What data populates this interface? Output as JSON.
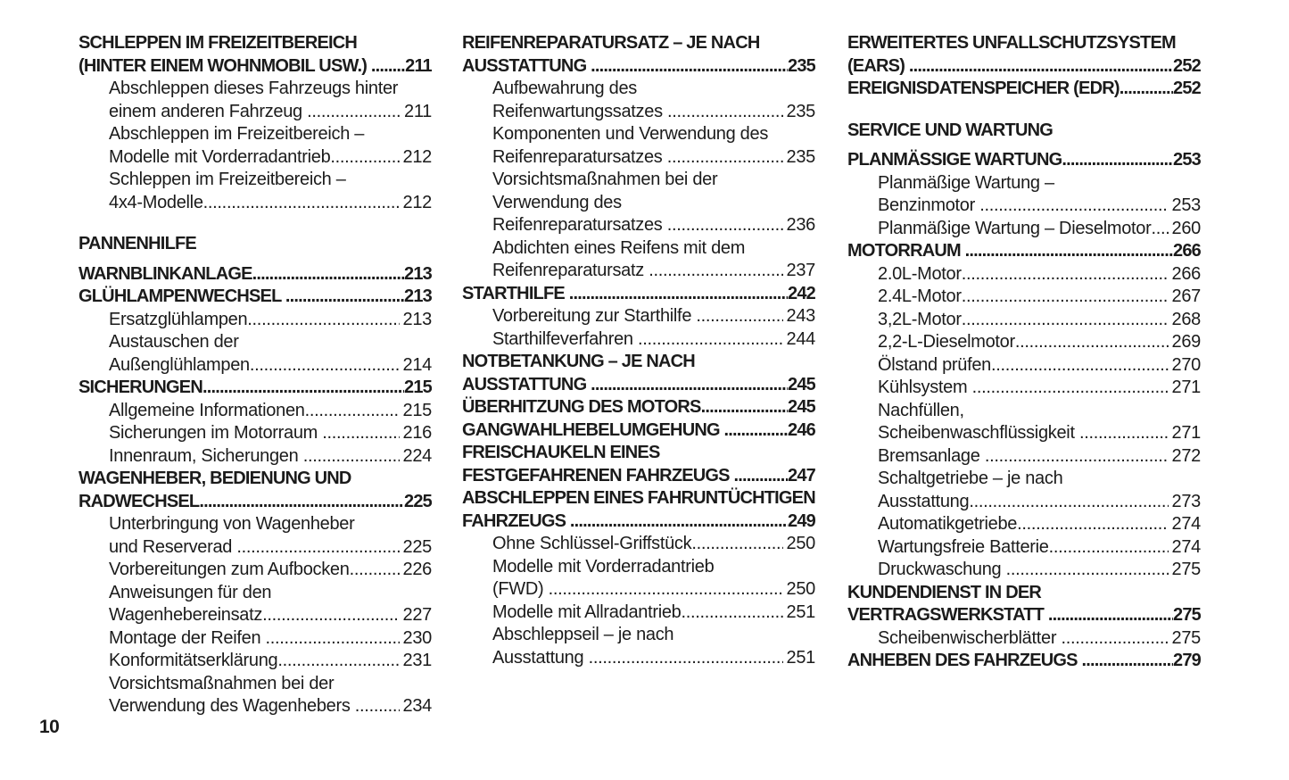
{
  "page": {
    "number": "10"
  },
  "colors": {
    "text": "#1b1b1b",
    "background": "#ffffff"
  },
  "columns": [
    {
      "blocks": [
        {
          "type": "entry",
          "weight": "bold",
          "indent": 0,
          "lines": [
            {
              "text": "SCHLEPPEN IM FREIZEITBEREICH"
            },
            {
              "text": "(HINTER EINEM WOHNMOBIL USW.) ",
              "page": "211"
            }
          ]
        },
        {
          "type": "entry",
          "weight": "regular",
          "indent": 1,
          "lines": [
            {
              "text": "Abschleppen dieses Fahrzeugs hinter"
            },
            {
              "text": "einem anderen Fahrzeug ",
              "page": "211"
            }
          ]
        },
        {
          "type": "entry",
          "weight": "regular",
          "indent": 1,
          "lines": [
            {
              "text": "Abschleppen im Freizeitbereich –"
            },
            {
              "text": "Modelle mit Vorderradantrieb",
              "page": "212"
            }
          ]
        },
        {
          "type": "entry",
          "weight": "regular",
          "indent": 1,
          "lines": [
            {
              "text": "Schleppen im Freizeitbereich –"
            },
            {
              "text": "4x4-Modelle",
              "page": "212"
            }
          ]
        },
        {
          "type": "header",
          "text": "PANNENHILFE"
        },
        {
          "type": "entry",
          "weight": "bold",
          "indent": 0,
          "lines": [
            {
              "text": "WARNBLINKANLAGE",
              "page": "213"
            }
          ]
        },
        {
          "type": "entry",
          "weight": "bold",
          "indent": 0,
          "lines": [
            {
              "text": "GLÜHLAMPENWECHSEL ",
              "page": "213"
            }
          ]
        },
        {
          "type": "entry",
          "weight": "regular",
          "indent": 1,
          "lines": [
            {
              "text": "Ersatzglühlampen",
              "page": "213"
            }
          ]
        },
        {
          "type": "entry",
          "weight": "regular",
          "indent": 1,
          "lines": [
            {
              "text": "Austauschen der"
            },
            {
              "text": "Außenglühlampen",
              "page": "214"
            }
          ]
        },
        {
          "type": "entry",
          "weight": "bold",
          "indent": 0,
          "lines": [
            {
              "text": "SICHERUNGEN",
              "page": "215"
            }
          ]
        },
        {
          "type": "entry",
          "weight": "regular",
          "indent": 1,
          "lines": [
            {
              "text": "Allgemeine Informationen",
              "page": "215"
            }
          ]
        },
        {
          "type": "entry",
          "weight": "regular",
          "indent": 1,
          "lines": [
            {
              "text": "Sicherungen im Motorraum ",
              "page": "216"
            }
          ]
        },
        {
          "type": "entry",
          "weight": "regular",
          "indent": 1,
          "lines": [
            {
              "text": "Innenraum, Sicherungen ",
              "page": "224"
            }
          ]
        },
        {
          "type": "entry",
          "weight": "bold",
          "indent": 0,
          "lines": [
            {
              "text": "WAGENHEBER, BEDIENUNG UND"
            },
            {
              "text": "RADWECHSEL",
              "page": "225"
            }
          ]
        },
        {
          "type": "entry",
          "weight": "regular",
          "indent": 1,
          "lines": [
            {
              "text": "Unterbringung von Wagenheber"
            },
            {
              "text": "und Reserverad ",
              "page": "225"
            }
          ]
        },
        {
          "type": "entry",
          "weight": "regular",
          "indent": 1,
          "lines": [
            {
              "text": "Vorbereitungen zum Aufbocken",
              "page": "226"
            }
          ]
        },
        {
          "type": "entry",
          "weight": "regular",
          "indent": 1,
          "lines": [
            {
              "text": "Anweisungen für den"
            },
            {
              "text": "Wagenhebereinsatz",
              "page": "227"
            }
          ]
        },
        {
          "type": "entry",
          "weight": "regular",
          "indent": 1,
          "lines": [
            {
              "text": "Montage der Reifen ",
              "page": "230"
            }
          ]
        },
        {
          "type": "entry",
          "weight": "regular",
          "indent": 1,
          "lines": [
            {
              "text": "Konformitätserklärung",
              "page": "231"
            }
          ]
        },
        {
          "type": "entry",
          "weight": "regular",
          "indent": 1,
          "lines": [
            {
              "text": "Vorsichtsmaßnahmen bei der"
            },
            {
              "text": "Verwendung des Wagenhebers ",
              "page": "234"
            }
          ]
        }
      ]
    },
    {
      "blocks": [
        {
          "type": "entry",
          "weight": "bold",
          "indent": 0,
          "lines": [
            {
              "text": "REIFENREPARATURSATZ – JE NACH"
            },
            {
              "text": "AUSSTATTUNG ",
              "page": "235"
            }
          ]
        },
        {
          "type": "entry",
          "weight": "regular",
          "indent": 1,
          "lines": [
            {
              "text": "Aufbewahrung des"
            },
            {
              "text": "Reifenwartungssatzes ",
              "page": "235"
            }
          ]
        },
        {
          "type": "entry",
          "weight": "regular",
          "indent": 1,
          "lines": [
            {
              "text": "Komponenten und Verwendung des"
            },
            {
              "text": "Reifenreparatursatzes ",
              "page": "235"
            }
          ]
        },
        {
          "type": "entry",
          "weight": "regular",
          "indent": 1,
          "lines": [
            {
              "text": "Vorsichtsmaßnahmen bei der"
            },
            {
              "text": "Verwendung des"
            },
            {
              "text": "Reifenreparatursatzes ",
              "page": "236"
            }
          ]
        },
        {
          "type": "entry",
          "weight": "regular",
          "indent": 1,
          "lines": [
            {
              "text": "Abdichten eines Reifens mit dem"
            },
            {
              "text": "Reifenreparatursatz ",
              "page": "237"
            }
          ]
        },
        {
          "type": "entry",
          "weight": "bold",
          "indent": 0,
          "lines": [
            {
              "text": "STARTHILFE ",
              "page": "242"
            }
          ]
        },
        {
          "type": "entry",
          "weight": "regular",
          "indent": 1,
          "lines": [
            {
              "text": "Vorbereitung zur Starthilfe ",
              "page": "243"
            }
          ]
        },
        {
          "type": "entry",
          "weight": "regular",
          "indent": 1,
          "lines": [
            {
              "text": "Starthilfeverfahren ",
              "page": "244"
            }
          ]
        },
        {
          "type": "entry",
          "weight": "bold",
          "indent": 0,
          "lines": [
            {
              "text": "NOTBETANKUNG – JE NACH"
            },
            {
              "text": "AUSSTATTUNG ",
              "page": "245"
            }
          ]
        },
        {
          "type": "entry",
          "weight": "bold",
          "indent": 0,
          "lines": [
            {
              "text": "ÜBERHITZUNG DES MOTORS",
              "page": "245"
            }
          ]
        },
        {
          "type": "entry",
          "weight": "bold",
          "indent": 0,
          "lines": [
            {
              "text": "GANGWAHLHEBELUMGEHUNG ",
              "page": "246"
            }
          ]
        },
        {
          "type": "entry",
          "weight": "bold",
          "indent": 0,
          "lines": [
            {
              "text": "FREISCHAUKELN EINES"
            },
            {
              "text": "FESTGEFAHRENEN FAHRZEUGS ",
              "page": "247"
            }
          ]
        },
        {
          "type": "entry",
          "weight": "bold",
          "indent": 0,
          "lines": [
            {
              "text": "ABSCHLEPPEN EINES FAHRUNTÜCHTIGEN"
            },
            {
              "text": "FAHRZEUGS ",
              "page": "249"
            }
          ]
        },
        {
          "type": "entry",
          "weight": "regular",
          "indent": 1,
          "lines": [
            {
              "text": "Ohne Schlüssel-Griffstück",
              "page": "250"
            }
          ]
        },
        {
          "type": "entry",
          "weight": "regular",
          "indent": 1,
          "lines": [
            {
              "text": "Modelle mit Vorderradantrieb"
            },
            {
              "text": "(FWD) ",
              "page": "250"
            }
          ]
        },
        {
          "type": "entry",
          "weight": "regular",
          "indent": 1,
          "lines": [
            {
              "text": "Modelle mit Allradantrieb",
              "page": "251"
            }
          ]
        },
        {
          "type": "entry",
          "weight": "regular",
          "indent": 1,
          "lines": [
            {
              "text": "Abschleppseil – je nach"
            },
            {
              "text": "Ausstattung ",
              "page": "251"
            }
          ]
        }
      ]
    },
    {
      "blocks": [
        {
          "type": "entry",
          "weight": "bold",
          "indent": 0,
          "lines": [
            {
              "text": "ERWEITERTES UNFALLSCHUTZSYSTEM"
            },
            {
              "text": "(EARS) ",
              "page": "252"
            }
          ]
        },
        {
          "type": "entry",
          "weight": "bold",
          "indent": 0,
          "lines": [
            {
              "text": "EREIGNISDATENSPEICHER (EDR)",
              "page": "252"
            }
          ]
        },
        {
          "type": "header",
          "text": "SERVICE UND WARTUNG"
        },
        {
          "type": "entry",
          "weight": "bold",
          "indent": 0,
          "lines": [
            {
              "text": "PLANMÄSSIGE WARTUNG",
              "page": "253"
            }
          ]
        },
        {
          "type": "entry",
          "weight": "regular",
          "indent": 1,
          "lines": [
            {
              "text": "Planmäßige Wartung –"
            },
            {
              "text": "Benzinmotor ",
              "page": "253"
            }
          ]
        },
        {
          "type": "entry",
          "weight": "regular",
          "indent": 1,
          "lines": [
            {
              "text": "Planmäßige Wartung – Dieselmotor",
              "page": "260"
            }
          ]
        },
        {
          "type": "entry",
          "weight": "bold",
          "indent": 0,
          "lines": [
            {
              "text": "MOTORRAUM ",
              "page": "266"
            }
          ]
        },
        {
          "type": "entry",
          "weight": "regular",
          "indent": 1,
          "lines": [
            {
              "text": "2.0L-Motor",
              "page": "266"
            }
          ]
        },
        {
          "type": "entry",
          "weight": "regular",
          "indent": 1,
          "lines": [
            {
              "text": "2.4L-Motor",
              "page": "267"
            }
          ]
        },
        {
          "type": "entry",
          "weight": "regular",
          "indent": 1,
          "lines": [
            {
              "text": "3,2L-Motor",
              "page": "268"
            }
          ]
        },
        {
          "type": "entry",
          "weight": "regular",
          "indent": 1,
          "lines": [
            {
              "text": "2,2-L-Dieselmotor",
              "page": "269"
            }
          ]
        },
        {
          "type": "entry",
          "weight": "regular",
          "indent": 1,
          "lines": [
            {
              "text": "Ölstand prüfen",
              "page": "270"
            }
          ]
        },
        {
          "type": "entry",
          "weight": "regular",
          "indent": 1,
          "lines": [
            {
              "text": "Kühlsystem ",
              "page": "271"
            }
          ]
        },
        {
          "type": "entry",
          "weight": "regular",
          "indent": 1,
          "lines": [
            {
              "text": "Nachfüllen,"
            },
            {
              "text": "Scheibenwaschflüssigkeit ",
              "page": "271"
            }
          ]
        },
        {
          "type": "entry",
          "weight": "regular",
          "indent": 1,
          "lines": [
            {
              "text": "Bremsanlage ",
              "page": "272"
            }
          ]
        },
        {
          "type": "entry",
          "weight": "regular",
          "indent": 1,
          "lines": [
            {
              "text": "Schaltgetriebe – je nach"
            },
            {
              "text": "Ausstattung",
              "page": "273"
            }
          ]
        },
        {
          "type": "entry",
          "weight": "regular",
          "indent": 1,
          "lines": [
            {
              "text": "Automatikgetriebe",
              "page": "274"
            }
          ]
        },
        {
          "type": "entry",
          "weight": "regular",
          "indent": 1,
          "lines": [
            {
              "text": "Wartungsfreie Batterie",
              "page": "274"
            }
          ]
        },
        {
          "type": "entry",
          "weight": "regular",
          "indent": 1,
          "lines": [
            {
              "text": "Druckwaschung ",
              "page": "275"
            }
          ]
        },
        {
          "type": "entry",
          "weight": "bold",
          "indent": 0,
          "lines": [
            {
              "text": "KUNDENDIENST IN DER"
            },
            {
              "text": "VERTRAGSWERKSTATT ",
              "page": "275"
            }
          ]
        },
        {
          "type": "entry",
          "weight": "regular",
          "indent": 1,
          "lines": [
            {
              "text": "Scheibenwischerblätter ",
              "page": "275"
            }
          ]
        },
        {
          "type": "entry",
          "weight": "bold",
          "indent": 0,
          "lines": [
            {
              "text": "ANHEBEN DES FAHRZEUGS ",
              "page": "279"
            }
          ]
        }
      ]
    }
  ]
}
